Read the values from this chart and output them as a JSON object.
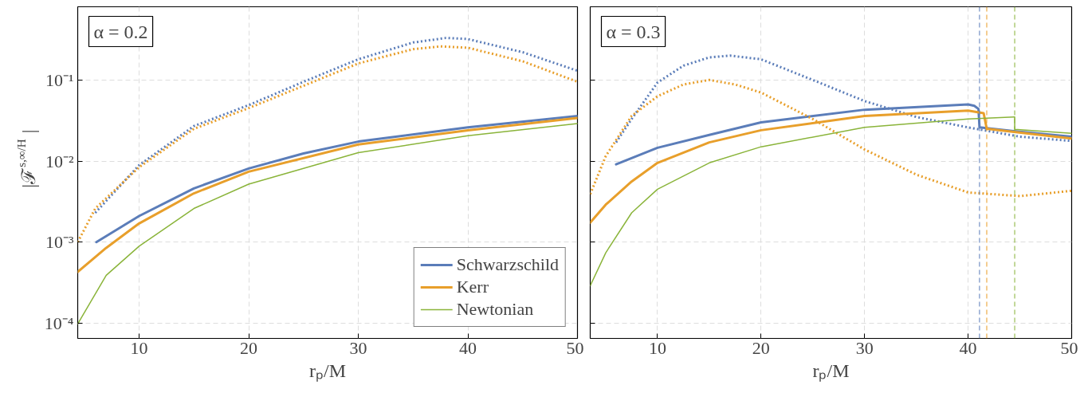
{
  "chart_data": [
    {
      "type": "line",
      "title": "α = 0.2",
      "xlabel": "rₚ/M",
      "ylabel": "|ℱ$^{s,∞/H}$|",
      "xlim": [
        4.4,
        50
      ],
      "ylim": [
        6.5e-05,
        0.8
      ],
      "xticks": [
        10,
        20,
        30,
        40,
        50
      ],
      "yticks": [
        {
          "value": 0.0001,
          "label": "10⁻⁴"
        },
        {
          "value": 0.001,
          "label": "10⁻³"
        },
        {
          "value": 0.01,
          "label": "10⁻²"
        },
        {
          "value": 0.1,
          "label": "10⁻¹"
        }
      ],
      "log": "y",
      "grid": true,
      "legend": "bottom right",
      "series": [
        {
          "name": "Schwarzschild",
          "color": "#5b7db9",
          "line_style": "solid",
          "x": [
            6.1,
            10,
            15,
            20,
            25,
            30,
            40,
            50
          ],
          "values": [
            0.001,
            0.0021,
            0.0046,
            0.0081,
            0.0124,
            0.0174,
            0.026,
            0.036
          ]
        },
        {
          "color": "#5b7db9",
          "line_style": "dotted",
          "x": [
            6,
            10,
            15,
            20,
            25,
            30,
            35,
            38,
            40,
            45,
            50
          ],
          "values": [
            0.0023,
            0.0089,
            0.027,
            0.049,
            0.095,
            0.18,
            0.29,
            0.33,
            0.32,
            0.22,
            0.13
          ]
        },
        {
          "name": "Kerr",
          "color": "#e89f2b",
          "line_style": "solid",
          "x": [
            4.4,
            7,
            10,
            15,
            20,
            30,
            40,
            50
          ],
          "values": [
            0.00043,
            0.00085,
            0.0017,
            0.004,
            0.0074,
            0.016,
            0.024,
            0.034
          ]
        },
        {
          "color": "#e89f2b",
          "line_style": "dotted",
          "x": [
            4.4,
            6,
            10,
            15,
            20,
            30,
            35,
            37.5,
            40,
            45,
            50
          ],
          "values": [
            0.001,
            0.0026,
            0.0084,
            0.025,
            0.045,
            0.16,
            0.24,
            0.26,
            0.25,
            0.17,
            0.095
          ]
        },
        {
          "name": "Newtonian",
          "color": "#8ab43a",
          "line_style": "solid",
          "x": [
            4.4,
            7,
            10,
            15,
            20,
            30,
            40,
            50
          ],
          "values": [
            9.8e-05,
            0.00039,
            0.00089,
            0.0026,
            0.0052,
            0.0127,
            0.0205,
            0.029
          ]
        }
      ]
    },
    {
      "type": "line",
      "title": "α = 0.3",
      "xlabel": "rₚ/M",
      "xlim": [
        3.5,
        50
      ],
      "ylim": [
        6.5e-05,
        0.8
      ],
      "xticks": [
        10,
        20,
        30,
        40,
        50
      ],
      "yticks": [
        {
          "value": 0.0001,
          "label": null
        },
        {
          "value": 0.001,
          "label": null
        },
        {
          "value": 0.01,
          "label": null
        },
        {
          "value": 0.1,
          "label": null
        }
      ],
      "log": "y",
      "grid": true,
      "tick_labels": "x",
      "ref_lines": [
        {
          "axis": "x",
          "value": 41.1,
          "label": null,
          "color": "#5b7db9",
          "line_style": "dashed"
        },
        {
          "axis": "x",
          "value": 41.8,
          "label": null,
          "color": "#e89f2b",
          "line_style": "dashed"
        },
        {
          "axis": "x",
          "value": 44.5,
          "label": null,
          "color": "#8ab43a",
          "line_style": "dashed"
        }
      ],
      "series": [
        {
          "color": "#5b7db9",
          "line_style": "solid",
          "x": [
            6,
            10,
            15,
            20,
            30,
            40,
            40.6,
            41,
            41.1,
            45,
            50
          ],
          "values": [
            0.0091,
            0.0146,
            0.021,
            0.03,
            0.043,
            0.05,
            0.048,
            0.044,
            0.026,
            0.023,
            0.02
          ]
        },
        {
          "color": "#5b7db9",
          "line_style": "dotted",
          "x": [
            6,
            7.5,
            10,
            12.5,
            15,
            17,
            20,
            25,
            30,
            35,
            40,
            45,
            50
          ],
          "values": [
            0.017,
            0.033,
            0.093,
            0.15,
            0.19,
            0.2,
            0.18,
            0.1,
            0.055,
            0.035,
            0.026,
            0.02,
            0.0177
          ]
        },
        {
          "color": "#e89f2b",
          "line_style": "solid",
          "x": [
            3.5,
            5,
            7.5,
            10,
            15,
            20,
            30,
            40,
            41.5,
            41.8,
            50
          ],
          "values": [
            0.00174,
            0.0029,
            0.0056,
            0.0095,
            0.017,
            0.024,
            0.036,
            0.042,
            0.039,
            0.025,
            0.019
          ]
        },
        {
          "color": "#e89f2b",
          "line_style": "dotted",
          "x": [
            3.5,
            5,
            7.5,
            10,
            12.5,
            15,
            17.5,
            20,
            25,
            30,
            35,
            40,
            45,
            50
          ],
          "values": [
            0.0039,
            0.0115,
            0.036,
            0.063,
            0.088,
            0.1,
            0.088,
            0.07,
            0.033,
            0.0139,
            0.0068,
            0.0041,
            0.0037,
            0.0043
          ]
        },
        {
          "color": "#8ab43a",
          "line_style": "solid",
          "x": [
            3.5,
            5,
            7.5,
            10,
            15,
            20,
            30,
            40,
            44.5,
            44.5,
            50
          ],
          "values": [
            0.00029,
            0.00074,
            0.0023,
            0.0045,
            0.0095,
            0.015,
            0.026,
            0.033,
            0.035,
            0.0246,
            0.022
          ]
        }
      ]
    }
  ]
}
